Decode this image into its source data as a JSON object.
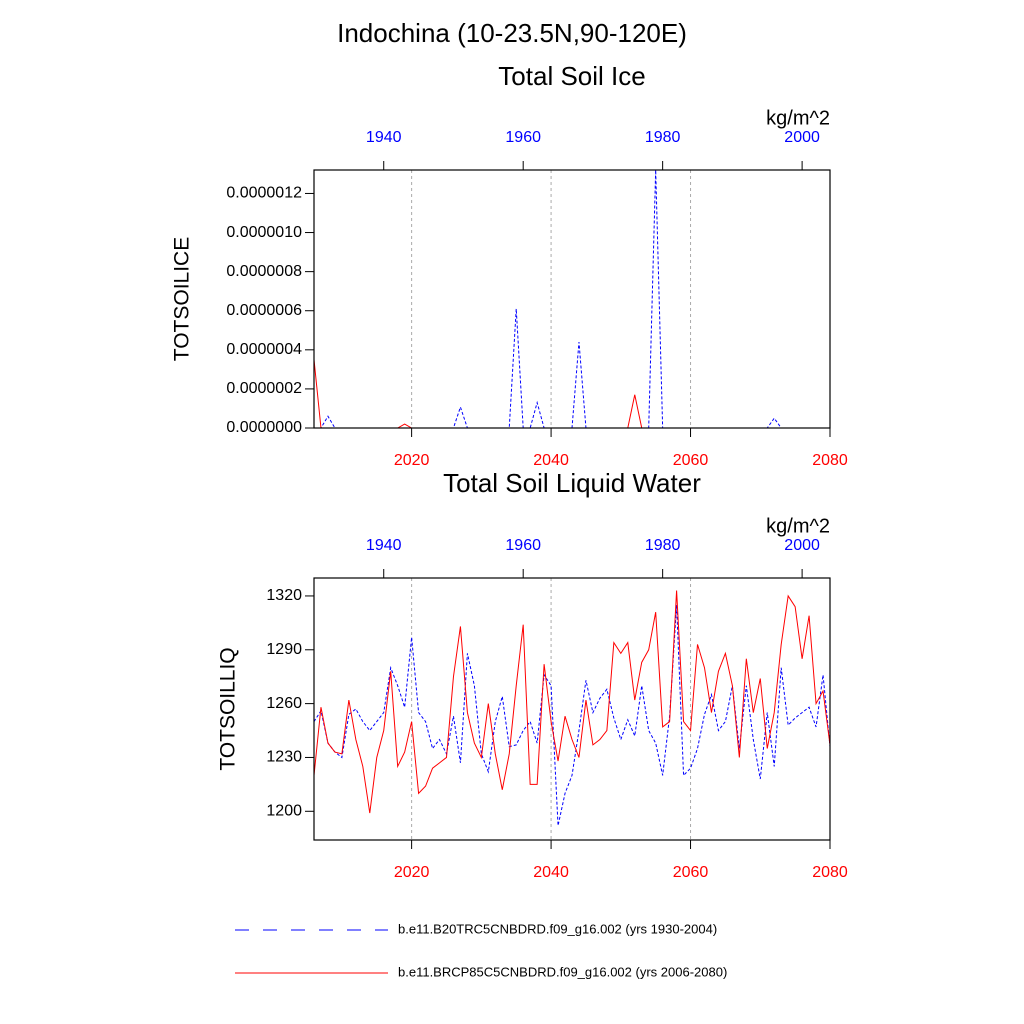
{
  "page_title": "Indochina (10-23.5N,90-120E)",
  "chart_data": [
    {
      "type": "line",
      "title": "Total Soil Ice",
      "ylabel": "TOTSOILICE",
      "units": "kg/m^2",
      "xlim": [
        2006,
        2080
      ],
      "xticks": [
        2020,
        2040,
        2060,
        2080
      ],
      "x2lim": [
        1930,
        2004
      ],
      "x2ticks": [
        1940,
        1960,
        1980,
        2000
      ],
      "x_color": "#ff0000",
      "x2_color": "#0000ff",
      "ylim": [
        0,
        1.32e-06
      ],
      "yticks": [
        {
          "value": 0,
          "label": "0.0000000"
        },
        {
          "value": 2e-07,
          "label": "0.0000002"
        },
        {
          "value": 4e-07,
          "label": "0.0000004"
        },
        {
          "value": 6e-07,
          "label": "0.0000006"
        },
        {
          "value": 8e-07,
          "label": "0.0000008"
        },
        {
          "value": 1e-06,
          "label": "0.0000010"
        },
        {
          "value": 1.2e-06,
          "label": "0.0000012"
        }
      ],
      "grid": true,
      "series": [
        {
          "name": "b.e11.B20TRC5CNBDRD.f09_g16.002 (yrs 1930-2004)",
          "color": "#0000ff",
          "style": "dashed",
          "axis": "x2",
          "x": [
            1930,
            1931,
            1932,
            1933,
            1934,
            1935,
            1936,
            1937,
            1938,
            1939,
            1940,
            1941,
            1942,
            1943,
            1944,
            1945,
            1946,
            1947,
            1948,
            1949,
            1950,
            1951,
            1952,
            1953,
            1954,
            1955,
            1956,
            1957,
            1958,
            1959,
            1960,
            1961,
            1962,
            1963,
            1964,
            1965,
            1966,
            1967,
            1968,
            1969,
            1970,
            1971,
            1972,
            1973,
            1974,
            1975,
            1976,
            1977,
            1978,
            1979,
            1980,
            1981,
            1982,
            1983,
            1984,
            1985,
            1986,
            1987,
            1988,
            1989,
            1990,
            1991,
            1992,
            1993,
            1994,
            1995,
            1996,
            1997,
            1998,
            1999,
            2000,
            2001,
            2002,
            2003,
            2004
          ],
          "values": [
            0,
            0,
            6e-08,
            0,
            0,
            0,
            0,
            0,
            0,
            0,
            0,
            0,
            0,
            0,
            0,
            0,
            0,
            0,
            0,
            0,
            0,
            1.07e-07,
            0,
            0,
            0,
            0,
            0,
            0,
            0,
            6.1e-07,
            0,
            0,
            1.3e-07,
            0,
            0,
            0,
            0,
            0,
            4.4e-07,
            0,
            0,
            0,
            0,
            0,
            0,
            0,
            0,
            0,
            0,
            1.32e-06,
            0,
            0,
            0,
            0,
            0,
            0,
            0,
            0,
            0,
            0,
            0,
            0,
            0,
            0,
            0,
            0,
            5e-08,
            0,
            0,
            0,
            0,
            0,
            0,
            0,
            0
          ]
        },
        {
          "name": "b.e11.BRCP85C5CNBDRD.f09_g16.002 (yrs 2006-2080)",
          "color": "#ff0000",
          "style": "solid",
          "axis": "x",
          "x": [
            2006,
            2007,
            2008,
            2009,
            2010,
            2011,
            2012,
            2013,
            2014,
            2015,
            2016,
            2017,
            2018,
            2019,
            2020,
            2021,
            2022,
            2023,
            2024,
            2025,
            2026,
            2027,
            2028,
            2029,
            2030,
            2031,
            2032,
            2033,
            2034,
            2035,
            2036,
            2037,
            2038,
            2039,
            2040,
            2041,
            2042,
            2043,
            2044,
            2045,
            2046,
            2047,
            2048,
            2049,
            2050,
            2051,
            2052,
            2053,
            2054,
            2055,
            2056,
            2057,
            2058,
            2059,
            2060,
            2061,
            2062,
            2063,
            2064,
            2065,
            2066,
            2067,
            2068,
            2069,
            2070,
            2071,
            2072,
            2073,
            2074,
            2075,
            2076,
            2077,
            2078,
            2079,
            2080
          ],
          "values": [
            3.5e-07,
            0,
            0,
            0,
            0,
            0,
            0,
            0,
            0,
            0,
            0,
            0,
            0,
            2e-08,
            0,
            0,
            0,
            0,
            0,
            0,
            0,
            0,
            0,
            0,
            0,
            0,
            0,
            0,
            0,
            0,
            0,
            0,
            0,
            0,
            0,
            0,
            0,
            0,
            0,
            0,
            0,
            0,
            0,
            0,
            0,
            0,
            1.7e-07,
            0,
            0,
            0,
            0,
            0,
            0,
            0,
            0,
            0,
            0,
            0,
            0,
            0,
            0,
            0,
            0,
            0,
            0,
            0,
            0,
            0,
            0,
            0,
            0,
            0,
            0,
            0,
            0
          ]
        }
      ]
    },
    {
      "type": "line",
      "title": "Total Soil Liquid Water",
      "ylabel": "TOTSOILLIQ",
      "units": "kg/m^2",
      "xlim": [
        2006,
        2080
      ],
      "xticks": [
        2020,
        2040,
        2060,
        2080
      ],
      "x2lim": [
        1930,
        2004
      ],
      "x2ticks": [
        1940,
        1960,
        1980,
        2000
      ],
      "x_color": "#ff0000",
      "x2_color": "#0000ff",
      "ylim": [
        1184,
        1330
      ],
      "yticks": [
        1200,
        1230,
        1260,
        1290,
        1320
      ],
      "grid": true,
      "series": [
        {
          "color": "#0000ff",
          "style": "dashed",
          "axis": "x2",
          "x": [
            1930,
            1931,
            1932,
            1933,
            1934,
            1935,
            1936,
            1937,
            1938,
            1939,
            1940,
            1941,
            1942,
            1943,
            1944,
            1945,
            1946,
            1947,
            1948,
            1949,
            1950,
            1951,
            1952,
            1953,
            1954,
            1955,
            1956,
            1957,
            1958,
            1959,
            1960,
            1961,
            1962,
            1963,
            1964,
            1965,
            1966,
            1967,
            1968,
            1969,
            1970,
            1971,
            1972,
            1973,
            1974,
            1975,
            1976,
            1977,
            1978,
            1979,
            1980,
            1981,
            1982,
            1983,
            1984,
            1985,
            1986,
            1987,
            1988,
            1989,
            1990,
            1991,
            1992,
            1993,
            1994,
            1995,
            1996,
            1997,
            1998,
            1999,
            2000,
            2001,
            2002,
            2003,
            2004
          ],
          "values": [
            1250,
            1256,
            1238,
            1233,
            1230,
            1254,
            1257,
            1250,
            1245,
            1250,
            1255,
            1280,
            1270,
            1258,
            1297,
            1255,
            1250,
            1235,
            1240,
            1232,
            1253,
            1227,
            1288,
            1270,
            1232,
            1222,
            1250,
            1264,
            1236,
            1237,
            1245,
            1250,
            1238,
            1276,
            1270,
            1192,
            1210,
            1220,
            1245,
            1273,
            1255,
            1263,
            1268,
            1252,
            1240,
            1251,
            1242,
            1270,
            1245,
            1238,
            1220,
            1253,
            1315,
            1220,
            1224,
            1235,
            1254,
            1265,
            1245,
            1250,
            1270,
            1235,
            1270,
            1240,
            1218,
            1255,
            1225,
            1280,
            1248,
            1252,
            1255,
            1258,
            1247,
            1276,
            1236
          ]
        },
        {
          "color": "#ff0000",
          "style": "solid",
          "axis": "x",
          "x": [
            2006,
            2007,
            2008,
            2009,
            2010,
            2011,
            2012,
            2013,
            2014,
            2015,
            2016,
            2017,
            2018,
            2019,
            2020,
            2021,
            2022,
            2023,
            2024,
            2025,
            2026,
            2027,
            2028,
            2029,
            2030,
            2031,
            2032,
            2033,
            2034,
            2035,
            2036,
            2037,
            2038,
            2039,
            2040,
            2041,
            2042,
            2043,
            2044,
            2045,
            2046,
            2047,
            2048,
            2049,
            2050,
            2051,
            2052,
            2053,
            2054,
            2055,
            2056,
            2057,
            2058,
            2059,
            2060,
            2061,
            2062,
            2063,
            2064,
            2065,
            2066,
            2067,
            2068,
            2069,
            2070,
            2071,
            2072,
            2073,
            2074,
            2075,
            2076,
            2077,
            2078,
            2079,
            2080
          ],
          "values": [
            1220,
            1258,
            1238,
            1233,
            1232,
            1262,
            1240,
            1225,
            1199,
            1230,
            1245,
            1278,
            1225,
            1233,
            1250,
            1210,
            1214,
            1224,
            1227,
            1230,
            1275,
            1303,
            1255,
            1238,
            1230,
            1260,
            1232,
            1212,
            1232,
            1270,
            1304,
            1215,
            1215,
            1282,
            1250,
            1228,
            1253,
            1240,
            1230,
            1262,
            1237,
            1240,
            1245,
            1294,
            1288,
            1294,
            1262,
            1283,
            1290,
            1311,
            1247,
            1250,
            1323,
            1250,
            1245,
            1293,
            1280,
            1255,
            1278,
            1288,
            1270,
            1230,
            1285,
            1255,
            1274,
            1235,
            1255,
            1293,
            1320,
            1314,
            1285,
            1309,
            1260,
            1267,
            1237
          ]
        }
      ]
    }
  ]
}
